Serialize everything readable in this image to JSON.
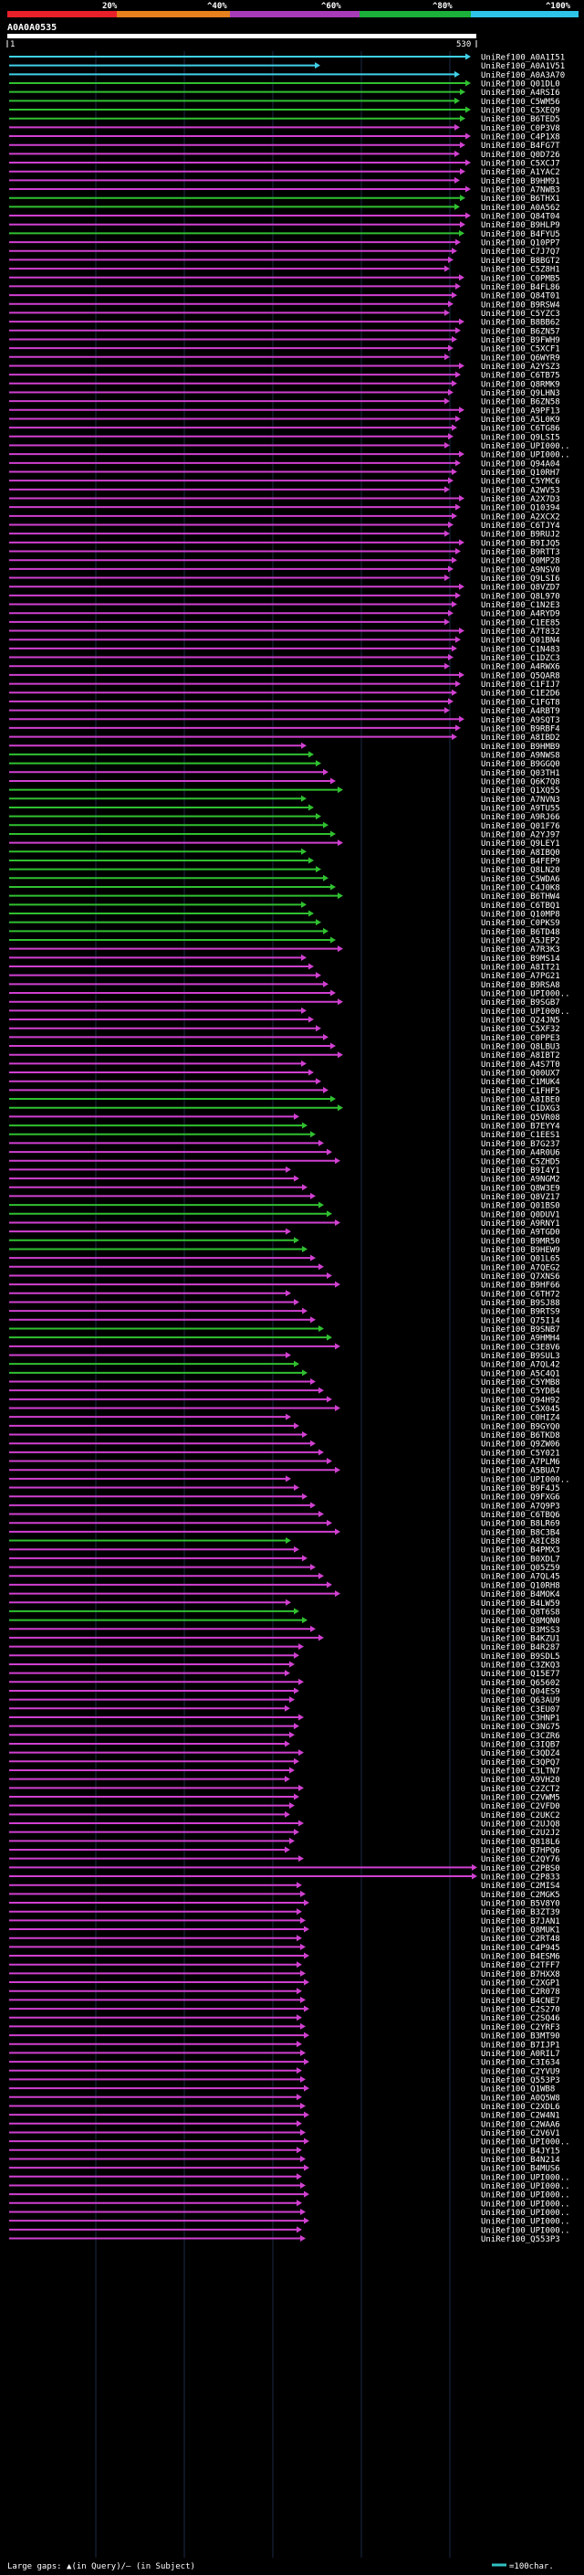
{
  "colors": {
    "background": "#000000",
    "pid_low": "#e8202a",
    "pid_20_40": "#e8801e",
    "pid_40_60": "#a83bb8",
    "pid_60_80": "#1ab03a",
    "pid_80_100": "#2ec4e8",
    "row_magenta": "#d040d0",
    "row_green": "#30c030",
    "row_cyan": "#40d0e8",
    "query_bar": "#ffffff",
    "hundred_char": "#30c0c0"
  },
  "header": {
    "legend_labels": [
      "20%",
      "^40%",
      "^60%",
      "^80%",
      "^100%"
    ],
    "query_id": "A0A0A0535",
    "ruler_start": "1",
    "ruler_end": "530"
  },
  "footer": {
    "gap_text": "Large gaps: ▲(in Query)/– (in Subject)",
    "scale_text": "=100char."
  },
  "hits": [
    "UniRef100_A0A1I51",
    "UniRef100_A0A1V51",
    "UniRef100_A0A3A70",
    "UniRef100_Q01DL0",
    "UniRef100_A4RSI6",
    "UniRef100_C5WM56",
    "UniRef100_C5XEQ9",
    "UniRef100_B6TED5",
    "UniRef100_C0P3V8",
    "UniRef100_C4P1X8",
    "UniRef100_B4FG7T",
    "UniRef100_Q0D726",
    "UniRef100_C5XCJ7",
    "UniRef100_A1YAC2",
    "UniRef100_B9HM91",
    "UniRef100_A7NWB3",
    "UniRef100_B6THX1",
    "UniRef100_A0A562",
    "UniRef100_Q84T04",
    "UniRef100_B9HLP9",
    "UniRef100_B4FYU5",
    "UniRef100_Q10PP7",
    "UniRef100_C7J7Q7",
    "UniRef100_B8BGT2",
    "UniRef100_C5Z8H1",
    "UniRef100_C0PMB5",
    "UniRef100_B4FL86",
    "UniRef100_Q84T01",
    "UniRef100_B9RSW4",
    "UniRef100_C5YZC3",
    "UniRef100_B8BB62",
    "UniRef100_B6ZN57",
    "UniRef100_B9FWH9",
    "UniRef100_C5XCF1",
    "UniRef100_Q6WYR9",
    "UniRef100_A2YSZ3",
    "UniRef100_C6TB75",
    "UniRef100_Q8RMK9",
    "UniRef100_Q9LHN3",
    "UniRef100_B6ZN58",
    "UniRef100_A9PF13",
    "UniRef100_A5L0K9",
    "UniRef100_C6TG86",
    "UniRef100_Q9LSI5",
    "UniRef100_UPI000..",
    "UniRef100_UPI000..",
    "UniRef100_Q94A04",
    "UniRef100_Q10RH7",
    "UniRef100_C5YMC6",
    "UniRef100_A2WV53",
    "UniRef100_A2X7D3",
    "UniRef100_Q10394",
    "UniRef100_A2XCX2",
    "UniRef100_C6TJY4",
    "UniRef100_B9RUJ2",
    "UniRef100_B9IJQ5",
    "UniRef100_B9RTT3",
    "UniRef100_Q0MP28",
    "UniRef100_A9NSV0",
    "UniRef100_Q9LSI6",
    "UniRef100_Q8VZD7",
    "UniRef100_Q8L970",
    "UniRef100_C1N2E3",
    "UniRef100_A4RYD9",
    "UniRef100_C1EE85",
    "UniRef100_A7T832",
    "UniRef100_Q01BN4",
    "UniRef100_C1N483",
    "UniRef100_C1DZC3",
    "UniRef100_A4RWX6",
    "UniRef100_Q5QAR8",
    "UniRef100_C1FIJ7",
    "UniRef100_C1E2D6",
    "UniRef100_C1FGT8",
    "UniRef100_A4RBT9",
    "UniRef100_A9SQT3",
    "UniRef100_B9RBF4",
    "UniRef100_A8IBD2",
    "UniRef100_B9HMB9",
    "UniRef100_A9NWS8",
    "UniRef100_B9GGQ0",
    "UniRef100_Q03TH1",
    "UniRef100_Q6K7Q8",
    "UniRef100_Q1XQ55",
    "UniRef100_A7NVN3",
    "UniRef100_A9TU55",
    "UniRef100_A9RJ66",
    "UniRef100_Q01F76",
    "UniRef100_A2YJ97",
    "UniRef100_Q9LEY1",
    "UniRef100_A8IBQ0",
    "UniRef100_B4FEP9",
    "UniRef100_Q8LN20",
    "UniRef100_C5WDA6",
    "UniRef100_C4J0K8",
    "UniRef100_B6THW4",
    "UniRef100_C6TBQ1",
    "UniRef100_Q10MP8",
    "UniRef100_C0PKS9",
    "UniRef100_B6TD48",
    "UniRef100_A5JEP2",
    "UniRef100_A7R3K3",
    "UniRef100_B9MS14",
    "UniRef100_A8IT21",
    "UniRef100_A7PG21",
    "UniRef100_B9RSA8",
    "UniRef100_UPI000..",
    "UniRef100_B9SGB7",
    "UniRef100_UPI000..",
    "UniRef100_Q24JN5",
    "UniRef100_C5XF32",
    "UniRef100_C0PPE3",
    "UniRef100_Q8LBU3",
    "UniRef100_A8IBT2",
    "UniRef100_A4S7T0",
    "UniRef100_Q00UX7",
    "UniRef100_C1MUK4",
    "UniRef100_C1FHF5",
    "UniRef100_A8IBE0",
    "UniRef100_C1DXG3",
    "UniRef100_Q5VR08",
    "UniRef100_B7EYY4",
    "UniRef100_C1EES1",
    "UniRef100_B7G237",
    "UniRef100_A4R0U6",
    "UniRef100_C5ZHD5",
    "UniRef100_B9I4Y1",
    "UniRef100_A9NGM2",
    "UniRef100_Q8W3E9",
    "UniRef100_Q8VZ17",
    "UniRef100_Q01BS0",
    "UniRef100_Q0DUV1",
    "UniRef100_A9RNY1",
    "UniRef100_A9TGD0",
    "UniRef100_B9MR50",
    "UniRef100_B9HEW9",
    "UniRef100_Q01L65",
    "UniRef100_A7QEG2",
    "UniRef100_Q7XNS6",
    "UniRef100_B9HF66",
    "UniRef100_C6TH72",
    "UniRef100_B9SJ88",
    "UniRef100_B9RTS9",
    "UniRef100_Q75I14",
    "UniRef100_B9SNB7",
    "UniRef100_A9HMH4",
    "UniRef100_C3E8V6",
    "UniRef100_B9SUL3",
    "UniRef100_A7QL42",
    "UniRef100_A5C4Q1",
    "UniRef100_C5YMB8",
    "UniRef100_C5YDB4",
    "UniRef100_Q94H92",
    "UniRef100_C5X045",
    "UniRef100_C0HIZ4",
    "UniRef100_B9GYQ0",
    "UniRef100_B6TKD8",
    "UniRef100_Q9ZW06",
    "UniRef100_C5Y021",
    "UniRef100_A7PLM6",
    "UniRef100_A5BUA7",
    "UniRef100_UPI000..",
    "UniRef100_B9F4J5",
    "UniRef100_Q9FXG6",
    "UniRef100_A7Q9P3",
    "UniRef100_C6TBQ6",
    "UniRef100_B8LR69",
    "UniRef100_B8C3B4",
    "UniRef100_A8IC88",
    "UniRef100_B4PMX3",
    "UniRef100_B0XDL7",
    "UniRef100_Q05Z59",
    "UniRef100_A7QL45",
    "UniRef100_Q10RH8",
    "UniRef100_B4MOK4",
    "UniRef100_B4LW59",
    "UniRef100_Q8T6S8",
    "UniRef100_Q8MQN0",
    "UniRef100_B3MSS3",
    "UniRef100_B4KZU1",
    "UniRef100_B4R287",
    "UniRef100_B9SDL5",
    "UniRef100_C3ZKQ3",
    "UniRef100_Q15E77",
    "UniRef100_Q65602",
    "UniRef100_Q04ES9",
    "UniRef100_Q63AU9",
    "UniRef100_C3EU07",
    "UniRef100_C3HNP1",
    "UniRef100_C3NG75",
    "UniRef100_C3CZR6",
    "UniRef100_C3IQB7",
    "UniRef100_C3QDZ4",
    "UniRef100_C3QPQ7",
    "UniRef100_C3LTN7",
    "UniRef100_A9VH20",
    "UniRef100_C2ZCT2",
    "UniRef100_C2VWM5",
    "UniRef100_C2VFD0",
    "UniRef100_C2UKC2",
    "UniRef100_C2UJQ8",
    "UniRef100_C2U2J2",
    "UniRef100_Q818L6",
    "UniRef100_B7HPQ6",
    "UniRef100_C2QY76",
    "UniRef100_C2PBS0",
    "UniRef100_C2P833",
    "UniRef100_C2MIS4",
    "UniRef100_C2MGK5",
    "UniRef100_B5V8Y0",
    "UniRef100_B3ZT39",
    "UniRef100_B7JAN1",
    "UniRef100_Q8MUK1",
    "UniRef100_C2RT48",
    "UniRef100_C4P945",
    "UniRef100_B4ESM6",
    "UniRef100_C2TFF7",
    "UniRef100_B7HXX8",
    "UniRef100_C2XGP1",
    "UniRef100_C2R078",
    "UniRef100_B4CNE7",
    "UniRef100_C2S270",
    "UniRef100_C2SQ46",
    "UniRef100_C2YRF3",
    "UniRef100_B3MT90",
    "UniRef100_B7IJP1",
    "UniRef100_A0RIL7",
    "UniRef100_C3I634",
    "UniRef100_C2YVU9",
    "UniRef100_Q553P3",
    "UniRef100_Q1WB8",
    "UniRef100_A0Q5W8",
    "UniRef100_C2XDL6",
    "UniRef100_C2W4N1",
    "UniRef100_C2WAA6",
    "UniRef100_C2V6V1",
    "UniRef100_UPI000..",
    "UniRef100_B4JY15",
    "UniRef100_B4N214",
    "UniRef100_B4MUS6",
    "UniRef100_UPI000..",
    "UniRef100_UPI000..",
    "UniRef100_UPI000..",
    "UniRef100_UPI000..",
    "UniRef100_UPI000..",
    "UniRef100_UPI000..",
    "UniRef100_UPI000..",
    "UniRef100_Q553P3"
  ]
}
